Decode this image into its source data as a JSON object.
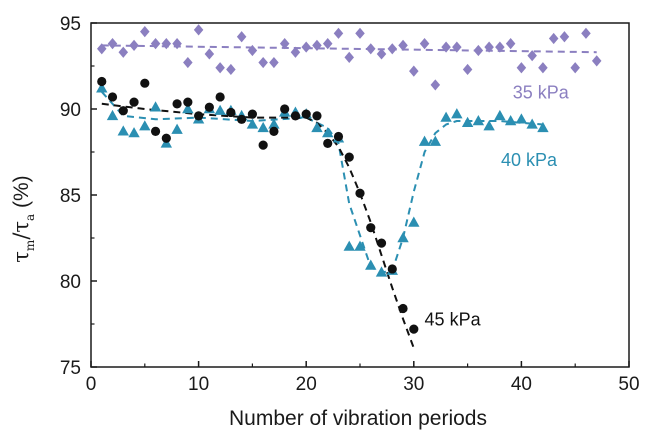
{
  "chart_data": {
    "type": "scatter",
    "title": "",
    "xlabel": "Number of vibration periods",
    "ylabel": {
      "main": "τ",
      "sub_m": "m",
      "slash": "/",
      "main2": "τ",
      "sub_a": "a",
      "unit": " (%)"
    },
    "xlim": [
      0,
      50
    ],
    "ylim": [
      75,
      95
    ],
    "xticks": [
      0,
      10,
      20,
      30,
      40,
      50
    ],
    "yticks": [
      75,
      80,
      85,
      90,
      95
    ],
    "xtick_labels": [
      "0",
      "10",
      "20",
      "30",
      "40",
      "50"
    ],
    "ytick_labels": [
      "75",
      "80",
      "85",
      "90",
      "95"
    ],
    "series": [
      {
        "name": "35 kPa",
        "marker": "diamond",
        "color": "#8b7fc0",
        "x": [
          1,
          2,
          3,
          4,
          5,
          6,
          7,
          8,
          9,
          10,
          11,
          12,
          13,
          14,
          15,
          16,
          17,
          18,
          19,
          20,
          21,
          22,
          23,
          24,
          25,
          26,
          27,
          28,
          29,
          30,
          31,
          32,
          33,
          34,
          35,
          36,
          37,
          38,
          39,
          40,
          41,
          42,
          43,
          44,
          45,
          46,
          47
        ],
        "y": [
          93.5,
          93.8,
          93.3,
          93.7,
          94.5,
          93.8,
          93.8,
          93.8,
          92.7,
          94.6,
          93.2,
          92.4,
          92.3,
          94.2,
          93.4,
          92.7,
          92.7,
          93.8,
          93.3,
          93.6,
          93.7,
          93.8,
          94.4,
          93.0,
          94.4,
          93.5,
          93.2,
          93.5,
          93.7,
          92.2,
          93.8,
          91.4,
          93.6,
          93.6,
          92.3,
          93.4,
          93.6,
          93.6,
          93.8,
          92.4,
          93.1,
          92.4,
          94.1,
          94.2,
          92.4,
          94.4,
          92.8
        ],
        "trend": {
          "x": [
            1,
            47
          ],
          "y": [
            93.7,
            93.3
          ]
        }
      },
      {
        "name": "40 kPa",
        "marker": "triangle",
        "color": "#2b8fb2",
        "x": [
          1,
          2,
          3,
          4,
          5,
          6,
          7,
          8,
          9,
          10,
          11,
          12,
          13,
          14,
          15,
          16,
          17,
          18,
          19,
          20,
          21,
          22,
          23,
          24,
          25,
          26,
          27,
          28,
          29,
          30,
          31,
          32,
          33,
          34,
          35,
          36,
          37,
          38,
          39,
          40,
          41,
          42
        ],
        "y": [
          91.2,
          89.6,
          88.7,
          88.6,
          89.0,
          90.1,
          88.0,
          88.8,
          90.0,
          89.4,
          90.0,
          89.9,
          89.9,
          89.6,
          89.1,
          88.9,
          89.1,
          89.8,
          89.8,
          89.7,
          88.9,
          88.6,
          88.3,
          82.0,
          82.0,
          80.9,
          80.5,
          80.6,
          82.5,
          83.4,
          88.1,
          88.1,
          89.5,
          89.7,
          89.2,
          89.3,
          89.0,
          89.6,
          89.3,
          89.4,
          89.1,
          88.9
        ],
        "trend": {
          "x": [
            1,
            3,
            6,
            10,
            15,
            20,
            22,
            23,
            24,
            26,
            27,
            28,
            29,
            30,
            31,
            32,
            33,
            34,
            36,
            38,
            40,
            42
          ],
          "y": [
            91.0,
            89.6,
            89.4,
            89.5,
            89.3,
            89.5,
            88.9,
            88.0,
            84.5,
            80.8,
            80.5,
            80.6,
            82.5,
            85.2,
            87.5,
            88.6,
            89.1,
            89.3,
            89.3,
            89.3,
            89.2,
            89.1
          ]
        }
      },
      {
        "name": "45 kPa",
        "marker": "circle",
        "color": "#111111",
        "x": [
          1,
          2,
          3,
          4,
          5,
          6,
          7,
          8,
          9,
          10,
          11,
          12,
          13,
          14,
          15,
          16,
          17,
          18,
          19,
          20,
          21,
          22,
          23,
          24,
          25,
          26,
          27,
          28,
          29,
          30
        ],
        "y": [
          91.6,
          90.7,
          89.9,
          90.4,
          91.5,
          88.7,
          88.3,
          90.3,
          90.4,
          89.6,
          90.1,
          90.7,
          89.8,
          89.4,
          89.7,
          87.9,
          88.7,
          90.0,
          89.6,
          89.7,
          89.6,
          88.0,
          88.4,
          87.2,
          85.1,
          83.1,
          82.2,
          80.7,
          78.4,
          77.2
        ],
        "trend": {
          "x": [
            1,
            5,
            10,
            15,
            20,
            21,
            22,
            23,
            24,
            25,
            26,
            27,
            28,
            29,
            30
          ],
          "y": [
            90.3,
            90.0,
            89.7,
            89.5,
            89.5,
            89.2,
            88.6,
            87.8,
            86.6,
            85.1,
            83.4,
            81.5,
            79.6,
            77.8,
            76.1
          ]
        }
      }
    ],
    "annotations": [
      {
        "text": "35 kPa",
        "x": 39.2,
        "y": 90.6
      },
      {
        "text": "40 kPa",
        "x": 38.1,
        "y": 86.7
      },
      {
        "text": "45 kPa",
        "x": 31.0,
        "y": 77.4
      }
    ]
  }
}
